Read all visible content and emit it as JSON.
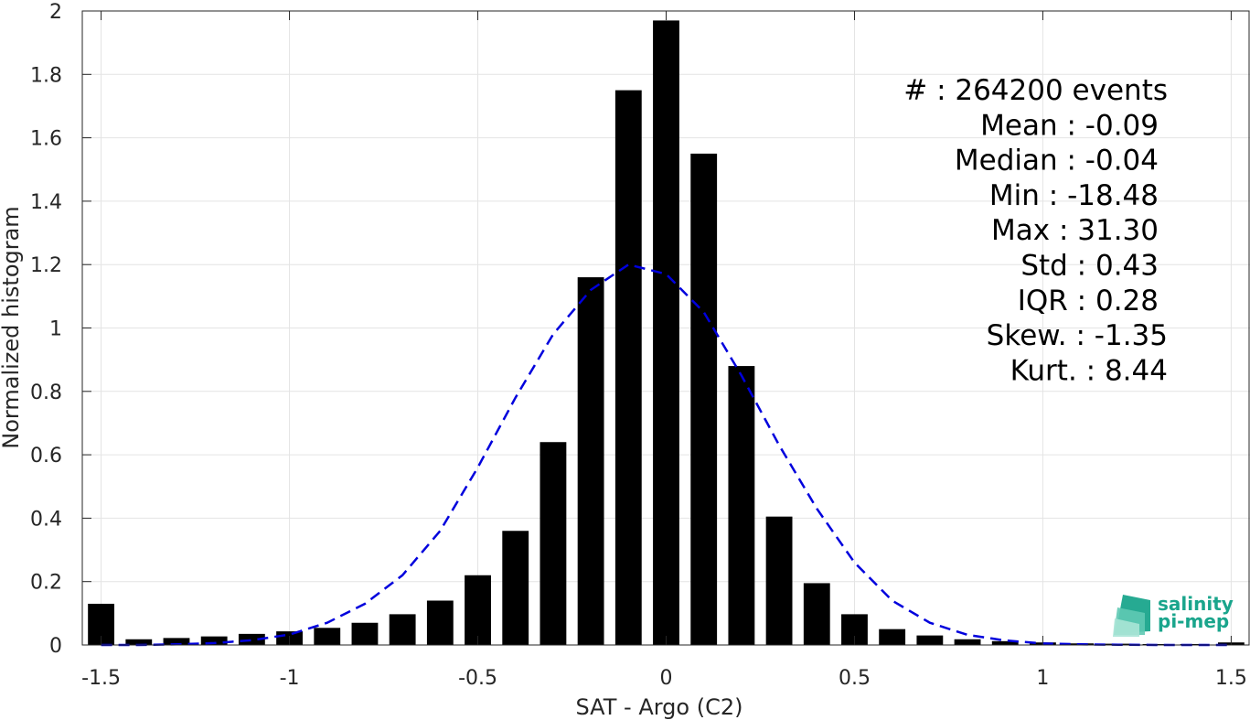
{
  "chart_data": {
    "type": "bar",
    "xlabel": "SAT - Argo (C2)",
    "ylabel": "Normalized histogram",
    "xlim": [
      -1.55,
      1.55
    ],
    "ylim": [
      0,
      2
    ],
    "xticks": [
      -1.5,
      -1,
      -0.5,
      0,
      0.5,
      1,
      1.5
    ],
    "xtick_labels": [
      "-1.5",
      "-1",
      "-0.5",
      "0",
      "0.5",
      "1",
      "1.5"
    ],
    "yticks": [
      0,
      0.2,
      0.4,
      0.6,
      0.8,
      1,
      1.2,
      1.4,
      1.6,
      1.8,
      2
    ],
    "ytick_labels": [
      "0",
      "0.2",
      "0.4",
      "0.6",
      "0.8",
      "1",
      "1.2",
      "1.4",
      "1.6",
      "1.8",
      "2"
    ],
    "grid": true,
    "bar_color": "#000000",
    "bar_width": 0.07,
    "bars": {
      "x": [
        -1.5,
        -1.4,
        -1.3,
        -1.2,
        -1.1,
        -1.0,
        -0.9,
        -0.8,
        -0.7,
        -0.6,
        -0.5,
        -0.4,
        -0.3,
        -0.2,
        -0.1,
        0.0,
        0.1,
        0.2,
        0.3,
        0.4,
        0.5,
        0.6,
        0.7,
        0.8,
        0.9,
        1.0,
        1.1,
        1.2,
        1.3,
        1.4,
        1.5
      ],
      "values": [
        0.13,
        0.018,
        0.022,
        0.027,
        0.035,
        0.043,
        0.054,
        0.07,
        0.097,
        0.14,
        0.22,
        0.36,
        0.64,
        1.16,
        1.75,
        1.97,
        1.55,
        0.88,
        0.405,
        0.195,
        0.097,
        0.05,
        0.03,
        0.018,
        0.012,
        0.008,
        0.005,
        0.004,
        0.003,
        0.003,
        0.008
      ]
    },
    "fit_curve": {
      "style": "dashed",
      "color": "#0000dd",
      "x": [
        -1.5,
        -1.4,
        -1.3,
        -1.2,
        -1.1,
        -1.0,
        -0.9,
        -0.8,
        -0.7,
        -0.6,
        -0.5,
        -0.4,
        -0.3,
        -0.2,
        -0.1,
        0.0,
        0.1,
        0.2,
        0.3,
        0.4,
        0.5,
        0.6,
        0.7,
        0.8,
        0.9,
        1.0,
        1.1,
        1.2,
        1.3,
        1.4,
        1.5
      ],
      "values": [
        0.0,
        0.0,
        0.002,
        0.006,
        0.015,
        0.033,
        0.07,
        0.13,
        0.22,
        0.36,
        0.56,
        0.78,
        0.98,
        1.12,
        1.2,
        1.17,
        1.05,
        0.85,
        0.63,
        0.43,
        0.26,
        0.14,
        0.07,
        0.032,
        0.014,
        0.005,
        0.002,
        0.001,
        0.0,
        0.0,
        0.0
      ]
    },
    "annotations": [
      {
        "text": "#  : 264200 events",
        "align": "end"
      },
      {
        "text": "Mean : -0.09",
        "align": "end"
      },
      {
        "text": "Median : -0.04",
        "align": "end"
      },
      {
        "text": "Min : -18.48",
        "align": "end"
      },
      {
        "text": "Max : 31.30",
        "align": "end"
      },
      {
        "text": "Std : 0.43",
        "align": "end"
      },
      {
        "text": "IQR : 0.28",
        "align": "end"
      },
      {
        "text": "Skew. : -1.35",
        "align": "end"
      },
      {
        "text": "Kurt. : 8.44",
        "align": "end"
      }
    ]
  },
  "logo": {
    "line1": "salinity",
    "line2": "pi-mep",
    "color": "#1aa58c"
  }
}
